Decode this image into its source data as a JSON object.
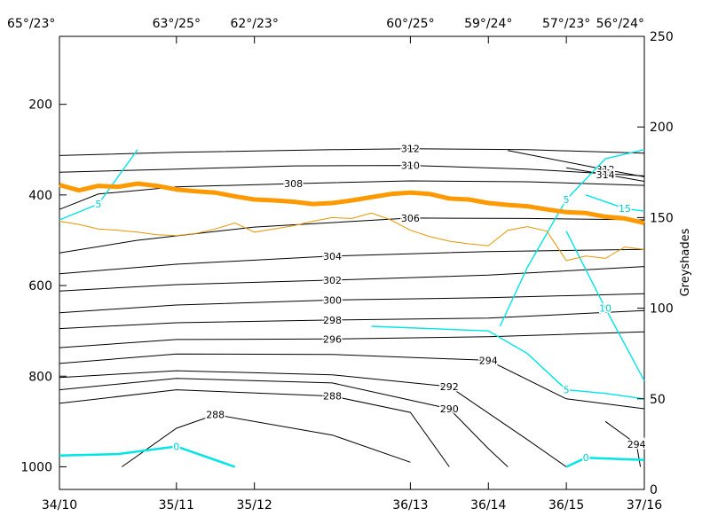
{
  "chart_data": {
    "type": "line",
    "top_axis": {
      "ticks": [
        {
          "x": 1,
          "label": "65°/23°"
        },
        {
          "x": 4,
          "label": "63°/25°"
        },
        {
          "x": 6,
          "label": "62°/23°"
        },
        {
          "x": 10,
          "label": "60°/25°"
        },
        {
          "x": 12,
          "label": "59°/24°"
        },
        {
          "x": 14,
          "label": "57°/23°"
        },
        {
          "x": 16,
          "label": "56°/24°"
        }
      ]
    },
    "x_axis": {
      "range": [
        1,
        16
      ],
      "ticks": [
        {
          "x": 1,
          "label": "34/10"
        },
        {
          "x": 4,
          "label": "35/11"
        },
        {
          "x": 6,
          "label": "35/12"
        },
        {
          "x": 10,
          "label": "36/13"
        },
        {
          "x": 12,
          "label": "36/14"
        },
        {
          "x": 14,
          "label": "36/15"
        },
        {
          "x": 16,
          "label": "37/16"
        }
      ]
    },
    "y_left": {
      "range": [
        50,
        1050
      ],
      "inverted": true,
      "ticks": [
        200,
        400,
        600,
        800,
        1000
      ]
    },
    "y_right": {
      "label": "Greyshades",
      "range": [
        0,
        250
      ],
      "ticks": [
        0,
        50,
        100,
        150,
        200,
        250
      ]
    },
    "theta_contours": [
      {
        "level": "312",
        "points": [
          [
            1,
            313
          ],
          [
            4,
            306
          ],
          [
            8,
            300
          ],
          [
            10,
            298
          ],
          [
            13,
            300
          ],
          [
            16,
            308
          ]
        ]
      },
      {
        "level": "310",
        "points": [
          [
            1,
            350
          ],
          [
            4,
            343
          ],
          [
            7,
            336
          ],
          [
            10,
            335
          ],
          [
            13,
            343
          ],
          [
            16,
            358
          ]
        ]
      },
      {
        "level": "308",
        "points": [
          [
            1,
            432
          ],
          [
            2,
            398
          ],
          [
            4,
            382
          ],
          [
            7,
            375
          ],
          [
            10,
            369
          ],
          [
            13,
            371
          ],
          [
            16,
            379
          ]
        ]
      },
      {
        "level": "306",
        "points": [
          [
            1,
            528
          ],
          [
            3,
            500
          ],
          [
            6,
            471
          ],
          [
            10,
            451
          ],
          [
            13,
            452
          ],
          [
            16,
            455
          ]
        ]
      },
      {
        "level": "304",
        "points": [
          [
            1,
            574
          ],
          [
            4,
            553
          ],
          [
            8,
            535
          ],
          [
            12,
            525
          ],
          [
            16,
            520
          ]
        ]
      },
      {
        "level": "302",
        "points": [
          [
            1,
            612
          ],
          [
            4,
            598
          ],
          [
            8,
            588
          ],
          [
            12,
            577
          ],
          [
            16,
            558
          ]
        ]
      },
      {
        "level": "300",
        "points": [
          [
            1,
            660
          ],
          [
            4,
            643
          ],
          [
            8,
            632
          ],
          [
            12,
            627
          ],
          [
            16,
            618
          ]
        ]
      },
      {
        "level": "298",
        "points": [
          [
            1,
            695
          ],
          [
            4,
            682
          ],
          [
            8,
            676
          ],
          [
            12,
            672
          ],
          [
            16,
            655
          ]
        ]
      },
      {
        "level": "296",
        "points": [
          [
            1,
            737
          ],
          [
            4,
            719
          ],
          [
            8,
            718
          ],
          [
            12,
            713
          ],
          [
            16,
            702
          ]
        ]
      },
      {
        "level": "294",
        "points": [
          [
            1,
            772
          ],
          [
            4,
            751
          ],
          [
            8,
            752
          ],
          [
            12,
            765
          ],
          [
            14,
            850
          ],
          [
            16,
            872
          ]
        ]
      },
      {
        "level": "292",
        "points": [
          [
            1,
            803
          ],
          [
            4,
            788
          ],
          [
            8,
            797
          ],
          [
            11,
            823
          ],
          [
            13,
            940
          ],
          [
            14,
            1000
          ]
        ]
      },
      {
        "level": "290",
        "points": [
          [
            1,
            830
          ],
          [
            4,
            805
          ],
          [
            8,
            815
          ],
          [
            11,
            872
          ],
          [
            12,
            960
          ],
          [
            12.5,
            1000
          ]
        ]
      },
      {
        "level": "288",
        "points": [
          [
            1,
            860
          ],
          [
            4,
            830
          ],
          [
            8,
            844
          ],
          [
            10,
            880
          ],
          [
            11,
            1000
          ]
        ]
      },
      {
        "level": "288",
        "points": [
          [
            2.6,
            1000
          ],
          [
            4,
            915
          ],
          [
            5,
            885
          ],
          [
            8,
            930
          ],
          [
            10,
            990
          ]
        ]
      },
      {
        "level": "312",
        "points": [
          [
            12.5,
            302
          ],
          [
            15,
            344
          ],
          [
            16,
            360
          ]
        ]
      },
      {
        "level": "314",
        "points": [
          [
            14,
            340
          ],
          [
            15,
            355
          ],
          [
            16,
            370
          ]
        ]
      },
      {
        "level": "294",
        "points": [
          [
            15,
            900
          ],
          [
            15.8,
            950
          ],
          [
            15.9,
            1000
          ]
        ]
      }
    ],
    "cyan_contours": [
      {
        "level": "0",
        "points": [
          [
            1,
            975
          ],
          [
            2.5,
            972
          ],
          [
            4,
            955
          ],
          [
            5.5,
            1000
          ]
        ]
      },
      {
        "level": "0",
        "points": [
          [
            14,
            1000
          ],
          [
            14.5,
            980
          ],
          [
            16,
            985
          ]
        ]
      },
      {
        "level": "5",
        "points": [
          [
            1,
            455
          ],
          [
            2,
            420
          ],
          [
            3,
            300
          ]
        ]
      },
      {
        "level": "5",
        "points": [
          [
            12.3,
            690
          ],
          [
            13,
            560
          ],
          [
            14,
            410
          ],
          [
            15,
            320
          ],
          [
            16,
            300
          ]
        ]
      },
      {
        "level": "5",
        "points": [
          [
            9,
            690
          ],
          [
            12,
            700
          ],
          [
            13,
            750
          ],
          [
            14,
            830
          ],
          [
            15,
            838
          ],
          [
            16,
            850
          ]
        ]
      },
      {
        "level": "10",
        "points": [
          [
            14,
            480
          ],
          [
            15,
            650
          ],
          [
            16,
            810
          ]
        ]
      },
      {
        "level": "15",
        "points": [
          [
            14.5,
            400
          ],
          [
            15.5,
            430
          ],
          [
            16,
            436
          ]
        ]
      }
    ],
    "bold_orange_line": [
      [
        1,
        378
      ],
      [
        1.5,
        390
      ],
      [
        2,
        380
      ],
      [
        2.5,
        382
      ],
      [
        3,
        375
      ],
      [
        3.5,
        380
      ],
      [
        4,
        388
      ],
      [
        4.5,
        392
      ],
      [
        5,
        395
      ],
      [
        5.5,
        403
      ],
      [
        6,
        410
      ],
      [
        6.5,
        412
      ],
      [
        7,
        415
      ],
      [
        7.5,
        420
      ],
      [
        8,
        418
      ],
      [
        8.5,
        412
      ],
      [
        9,
        405
      ],
      [
        9.5,
        398
      ],
      [
        10,
        395
      ],
      [
        10.5,
        398
      ],
      [
        11,
        408
      ],
      [
        11.5,
        410
      ],
      [
        12,
        418
      ],
      [
        12.5,
        422
      ],
      [
        13,
        425
      ],
      [
        13.5,
        432
      ],
      [
        14,
        438
      ],
      [
        14.5,
        440
      ],
      [
        15,
        448
      ],
      [
        15.5,
        452
      ],
      [
        16,
        462
      ]
    ],
    "thin_orange_line": [
      [
        1,
        458
      ],
      [
        1.5,
        465
      ],
      [
        2,
        475
      ],
      [
        2.5,
        478
      ],
      [
        3,
        482
      ],
      [
        3.5,
        488
      ],
      [
        4,
        490
      ],
      [
        4.5,
        485
      ],
      [
        5,
        475
      ],
      [
        5.5,
        462
      ],
      [
        6,
        482
      ],
      [
        6.5,
        475
      ],
      [
        7,
        468
      ],
      [
        7.5,
        458
      ],
      [
        8,
        450
      ],
      [
        8.5,
        452
      ],
      [
        9,
        440
      ],
      [
        9.5,
        455
      ],
      [
        10,
        478
      ],
      [
        10.5,
        492
      ],
      [
        11,
        502
      ],
      [
        11.5,
        508
      ],
      [
        12,
        512
      ],
      [
        12.5,
        478
      ],
      [
        13,
        470
      ],
      [
        13.5,
        480
      ],
      [
        14,
        545
      ],
      [
        14.5,
        535
      ],
      [
        15,
        540
      ],
      [
        15.5,
        515
      ],
      [
        16,
        520
      ]
    ]
  }
}
